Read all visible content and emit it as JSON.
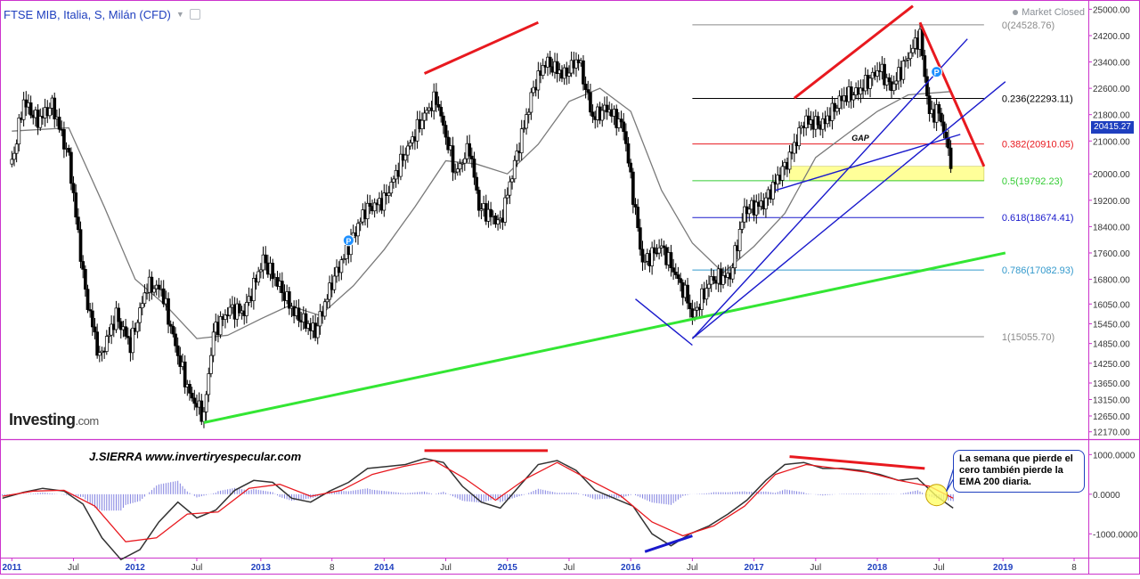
{
  "header": {
    "title": "FTSE MIB, Italia, S, Milán (CFD)",
    "market_status": "Market Closed"
  },
  "branding": {
    "logo_main": "Investing",
    "logo_suffix": ".com",
    "author": "J.SIERRA  www.invertiryespecular.com"
  },
  "annotation": {
    "gap_label": "GAP",
    "callout_text": "La semana que pierde el cero también pierde la EMA 200 diaria."
  },
  "colors": {
    "divergence_red": "#e8191f",
    "support_blue": "#1a1acc",
    "trend_green": "#33e633",
    "fib_black": "#000000",
    "fib_red": "#e8191f",
    "fib_green": "#33cc33",
    "fib_blue": "#1a1acc",
    "fib_teal": "#3399cc",
    "fib_gray": "#8a8a8a",
    "gap_fill": "#ffff99",
    "price_tag": "#1f3fbf"
  },
  "chart_data": [
    {
      "type": "line",
      "panel": "price",
      "y_scale": "linear",
      "ylim": [
        12000,
        25200
      ],
      "xlim": [
        "2010-11-29",
        "2019-09-16"
      ],
      "y_ticks": [
        25000,
        24200,
        23400,
        22600,
        21800,
        21000,
        20000,
        19200,
        18400,
        17600,
        16800,
        16050,
        15450,
        14850,
        14250,
        13650,
        13150,
        12650,
        12170
      ],
      "y_tick_labels": [
        "25000.00",
        "24200.00",
        "23400.00",
        "22600.00",
        "21800.00",
        "21000.00",
        "20000.00",
        "19200.00",
        "18400.00",
        "17600.00",
        "16800.00",
        "16050.00",
        "15450.00",
        "14850.00",
        "14250.00",
        "13650.00",
        "13150.00",
        "12650.00",
        "12170.00"
      ],
      "last_price": 20415.27,
      "last_price_label": "20415.27",
      "close_series": {
        "x": [
          "2011-01-03",
          "2011-02-07",
          "2011-03-21",
          "2011-05-02",
          "2011-06-20",
          "2011-08-08",
          "2011-09-19",
          "2011-11-07",
          "2011-12-19",
          "2012-02-06",
          "2012-03-19",
          "2012-05-07",
          "2012-06-11",
          "2012-07-23",
          "2012-08-20",
          "2012-10-08",
          "2012-11-19",
          "2013-01-14",
          "2013-02-25",
          "2013-04-15",
          "2013-06-17",
          "2013-08-05",
          "2013-09-23",
          "2013-11-11",
          "2014-01-06",
          "2014-03-03",
          "2014-05-05",
          "2014-06-09",
          "2014-08-04",
          "2014-09-15",
          "2014-10-13",
          "2014-12-15",
          "2015-02-02",
          "2015-03-23",
          "2015-04-27",
          "2015-06-22",
          "2015-08-03",
          "2015-09-14",
          "2015-10-26",
          "2015-12-14",
          "2016-02-08",
          "2016-04-04",
          "2016-06-20",
          "2016-07-04",
          "2016-08-29",
          "2016-10-24",
          "2016-12-05",
          "2017-01-30",
          "2017-04-17",
          "2017-05-29",
          "2017-07-24",
          "2017-09-18",
          "2017-11-06",
          "2018-01-08",
          "2018-02-12",
          "2018-04-09",
          "2018-05-07",
          "2018-06-04",
          "2018-07-02",
          "2018-08-06"
        ],
        "y": [
          20300,
          22200,
          21600,
          22100,
          20500,
          16400,
          14400,
          15700,
          14800,
          16600,
          16500,
          14500,
          13300,
          12650,
          15200,
          15900,
          15800,
          17400,
          16700,
          15800,
          15200,
          16700,
          17800,
          18900,
          19200,
          20500,
          21800,
          22300,
          20000,
          20800,
          19000,
          18500,
          20600,
          22600,
          23400,
          23000,
          23500,
          21700,
          22000,
          21400,
          17300,
          17800,
          16200,
          15650,
          16800,
          16900,
          18900,
          19100,
          20500,
          21600,
          21500,
          22300,
          22500,
          23200,
          22600,
          23700,
          24200,
          21800,
          21900,
          20415
        ]
      },
      "moving_average": {
        "x": [
          "2011-01-03",
          "2011-06-20",
          "2011-10-03",
          "2012-01-02",
          "2012-04-02",
          "2012-07-02",
          "2012-10-01",
          "2013-01-07",
          "2013-04-01",
          "2013-07-01",
          "2013-10-07",
          "2014-01-06",
          "2014-04-07",
          "2014-07-07",
          "2014-10-06",
          "2015-01-05",
          "2015-04-06",
          "2015-07-06",
          "2015-10-05",
          "2016-01-04",
          "2016-04-04",
          "2016-07-04",
          "2016-10-03",
          "2017-01-02",
          "2017-04-03",
          "2017-07-03",
          "2017-10-02",
          "2018-01-01",
          "2018-04-02",
          "2018-08-06"
        ],
        "y": [
          21300,
          21400,
          19000,
          16800,
          16000,
          15000,
          15100,
          15600,
          16000,
          15700,
          16600,
          17700,
          19000,
          20400,
          20300,
          20000,
          20900,
          22200,
          22600,
          21900,
          19500,
          17900,
          17000,
          17800,
          18800,
          20500,
          21200,
          21900,
          22400,
          22500
        ]
      },
      "fibonacci_levels": [
        {
          "ratio": 0,
          "value": 24528.76,
          "label": "0(24528.76)",
          "color": "#8a8a8a"
        },
        {
          "ratio": 0.236,
          "value": 22293.11,
          "label": "0.236(22293.11)",
          "color": "#000000"
        },
        {
          "ratio": 0.382,
          "value": 20910.05,
          "label": "0.382(20910.05)",
          "color": "#e8191f"
        },
        {
          "ratio": 0.5,
          "value": 19792.23,
          "label": "0.5(19792.23)",
          "color": "#33cc33"
        },
        {
          "ratio": 0.618,
          "value": 18674.41,
          "label": "0.618(18674.41)",
          "color": "#1a1acc"
        },
        {
          "ratio": 0.786,
          "value": 17082.93,
          "label": "0.786(17082.93)",
          "color": "#3399cc"
        },
        {
          "ratio": 1,
          "value": 15055.7,
          "label": "1(15055.70)",
          "color": "#8a8a8a"
        }
      ],
      "fib_start": "2016-07-04",
      "fib_end": "2018-11-12",
      "gap_zone": {
        "x": [
          "2017-04-17",
          "2018-11-12"
        ],
        "y": [
          19792.23,
          20230
        ]
      },
      "trendlines": [
        {
          "name": "support-green",
          "color": "#33e633",
          "x": [
            "2012-07-23",
            "2019-01-14"
          ],
          "y": [
            12450,
            17600
          ]
        },
        {
          "name": "divergence-red-2014",
          "color": "#e8191f",
          "x": [
            "2014-05-05",
            "2015-04-06"
          ],
          "y": [
            23050,
            24600
          ]
        },
        {
          "name": "divergence-red-2017",
          "color": "#e8191f",
          "x": [
            "2017-05-01",
            "2018-04-16"
          ],
          "y": [
            22300,
            25100
          ]
        },
        {
          "name": "red-decline-2018",
          "color": "#e8191f",
          "x": [
            "2018-05-07",
            "2018-11-12"
          ],
          "y": [
            24600,
            20230
          ]
        },
        {
          "name": "blue-low-2016",
          "color": "#1a1acc",
          "x": [
            "2016-01-18",
            "2016-07-04"
          ],
          "y": [
            16200,
            14800
          ]
        },
        {
          "name": "blue-trend-inner",
          "color": "#1a1acc",
          "x": [
            "2016-07-04",
            "2018-09-24"
          ],
          "y": [
            15000,
            24100
          ]
        },
        {
          "name": "blue-trend-outer",
          "color": "#1a1acc",
          "x": [
            "2016-07-04",
            "2019-01-14"
          ],
          "y": [
            15000,
            22800
          ]
        },
        {
          "name": "blue-channel",
          "color": "#1a1acc",
          "x": [
            "2017-03-06",
            "2018-09-03"
          ],
          "y": [
            19500,
            21200
          ]
        }
      ],
      "markers": [
        {
          "label": "P",
          "x": "2013-09-23",
          "y": 17980
        },
        {
          "label": "P",
          "x": "2018-06-25",
          "y": 23100
        }
      ]
    },
    {
      "type": "line",
      "panel": "oscillator",
      "ylim": [
        -1600,
        1300
      ],
      "y_ticks": [
        1000,
        0,
        -1000
      ],
      "y_tick_labels": [
        "1000.0000",
        "0.0000",
        "-1000.0000"
      ],
      "x_tick_labels": [
        "2011",
        "Jul",
        "2012",
        "Jul",
        "2013",
        "8",
        "2014",
        "Jul",
        "2015",
        "Jul",
        "2016",
        "Jul",
        "2017",
        "Jul",
        "2018",
        "Jul",
        "2019",
        "8"
      ],
      "x_tick_dates": [
        "2011-01-03",
        "2011-07-04",
        "2012-01-02",
        "2012-07-02",
        "2013-01-07",
        "2013-08-05",
        "2014-01-06",
        "2014-07-07",
        "2015-01-05",
        "2015-07-06",
        "2016-01-04",
        "2016-07-04",
        "2017-01-02",
        "2017-07-03",
        "2018-01-01",
        "2018-07-02",
        "2019-01-07",
        "2019-08-05"
      ],
      "macd_line": {
        "x": [
          "2010-12-06",
          "2011-02-07",
          "2011-04-04",
          "2011-06-06",
          "2011-08-01",
          "2011-09-26",
          "2011-11-21",
          "2012-01-16",
          "2012-03-12",
          "2012-05-07",
          "2012-07-02",
          "2012-08-27",
          "2012-10-22",
          "2012-12-17",
          "2013-02-11",
          "2013-04-08",
          "2013-06-03",
          "2013-07-29",
          "2013-09-23",
          "2013-11-18",
          "2014-01-13",
          "2014-03-10",
          "2014-05-05",
          "2014-06-30",
          "2014-08-25",
          "2014-10-20",
          "2014-12-15",
          "2015-02-09",
          "2015-04-06",
          "2015-06-01",
          "2015-07-27",
          "2015-09-21",
          "2015-11-16",
          "2016-01-11",
          "2016-03-07",
          "2016-05-02",
          "2016-06-27",
          "2016-08-22",
          "2016-10-17",
          "2016-12-12",
          "2017-02-06",
          "2017-04-03",
          "2017-05-29",
          "2017-07-24",
          "2017-09-18",
          "2017-11-13",
          "2018-01-08",
          "2018-03-05",
          "2018-04-30",
          "2018-06-25",
          "2018-08-13"
        ],
        "y": [
          -100,
          50,
          150,
          80,
          -250,
          -1100,
          -1650,
          -1400,
          -700,
          -200,
          -600,
          -400,
          100,
          350,
          300,
          -100,
          -200,
          80,
          300,
          650,
          700,
          750,
          900,
          800,
          200,
          -200,
          -350,
          200,
          750,
          850,
          600,
          100,
          -100,
          -300,
          -1000,
          -1300,
          -1000,
          -800,
          -500,
          -150,
          350,
          750,
          800,
          650,
          650,
          600,
          500,
          350,
          400,
          -50,
          -350
        ]
      },
      "signal_line": {
        "x": [
          "2010-12-06",
          "2011-03-07",
          "2011-06-06",
          "2011-09-05",
          "2011-12-05",
          "2012-03-05",
          "2012-06-04",
          "2012-09-03",
          "2012-12-03",
          "2013-03-04",
          "2013-06-03",
          "2013-09-02",
          "2013-12-02",
          "2014-03-03",
          "2014-06-02",
          "2014-09-01",
          "2014-12-01",
          "2015-03-02",
          "2015-06-01",
          "2015-09-07",
          "2015-12-07",
          "2016-03-07",
          "2016-06-06",
          "2016-09-05",
          "2016-12-05",
          "2017-03-06",
          "2017-06-05",
          "2017-09-04",
          "2017-12-04",
          "2018-03-05",
          "2018-06-04",
          "2018-08-13"
        ],
        "y": [
          -50,
          80,
          100,
          -300,
          -1200,
          -1100,
          -500,
          -450,
          150,
          250,
          -50,
          100,
          500,
          700,
          850,
          400,
          -150,
          400,
          800,
          350,
          -50,
          -700,
          -1050,
          -800,
          -300,
          500,
          750,
          650,
          550,
          350,
          200,
          -100
        ]
      }
    }
  ]
}
